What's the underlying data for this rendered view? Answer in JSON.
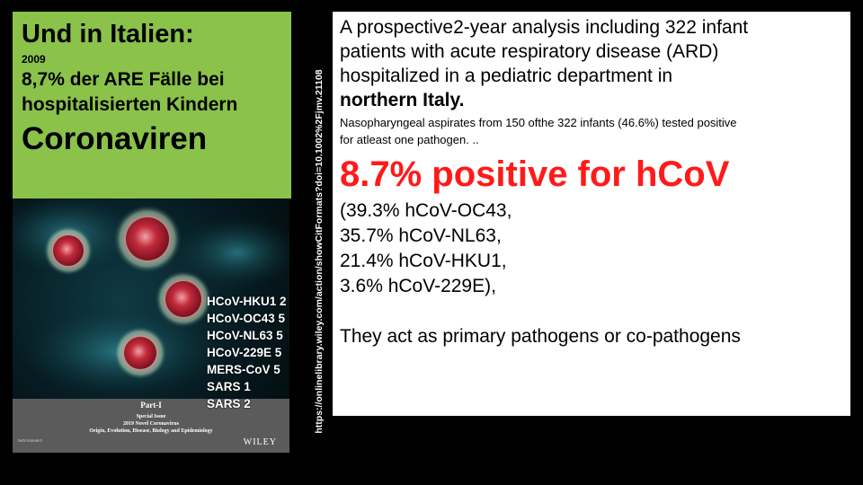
{
  "left_panel": {
    "title": "Und in Italien:",
    "year": "2009",
    "line1": "8,7% der ARE Fälle bei",
    "line2": "hospitalisierten Kindern",
    "big": "Coronaviren"
  },
  "cover": {
    "part": "Part-I",
    "special": "Special Issue",
    "novel": "2019 Novel Coronavirus",
    "origin": "Origin, Evolution, Disease, Biology and Epidemiology",
    "issn": "ISSN 0146-6615",
    "publisher": "WILEY",
    "colors": {
      "virus_red": "#c22a3a",
      "virus_halo": "#e08f8a",
      "background": "#061a20"
    }
  },
  "virus_counts": [
    "HCoV-HKU1 2",
    "HCoV-OC43 5",
    "HCoV-NL63 5",
    "HCoV-229E 5",
    "MERS-CoV 5",
    "SARS 1",
    "SARS 2"
  ],
  "source_url": "https://onlinelibrary.wiley.com/action/showCitFormats?doi=10.1002%2Fjmv.21108",
  "right_panel": {
    "intro_l1": "A prospective2-year analysis including 322 infant",
    "intro_l2": "patients with acute respiratory disease (ARD)",
    "intro_l3": "hospitalized in a pediatric department in",
    "intro_bold": "northern Italy.",
    "small_l1": "Nasopharyngeal aspirates from 150 ofthe 322 infants (46.6%) tested positive",
    "small_l2": "for atleast one pathogen. ..",
    "headline": "8.7% positive for hCoV",
    "pct1": "(39.3% hCoV-OC43,",
    "pct2": "35.7% hCoV-NL63,",
    "pct3": "21.4% hCoV-HKU1,",
    "pct4": "3.6% hCoV-229E),",
    "closing": "They act as primary pathogens or co-pathogens",
    "colors": {
      "headline": "#ff1a1a"
    }
  }
}
